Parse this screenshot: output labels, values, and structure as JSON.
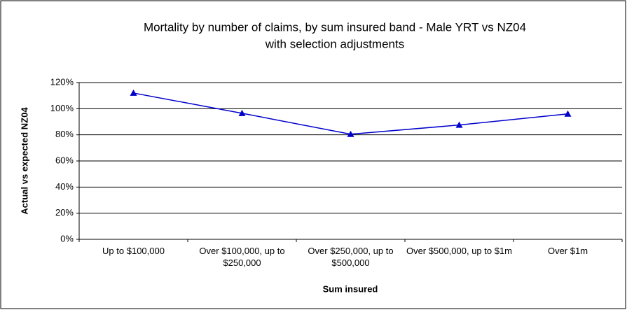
{
  "chart_data": {
    "type": "line",
    "title": "Mortality by number of claims, by sum insured band - Male YRT vs NZ04",
    "subtitle": "with selection adjustments",
    "x_label": "Sum insured",
    "y_label": "Actual vs expected NZ04",
    "categories": [
      "Up to $100,000",
      "Over $100,000, up to $250,000",
      "Over $250,000, up to $500,000",
      "Over $500,000, up to $1m",
      "Over $1m"
    ],
    "values": [
      112,
      96.5,
      80.5,
      87.5,
      96
    ],
    "color": "#0000cc",
    "marker": "triangle",
    "ylim": [
      0,
      120
    ],
    "yticks": [
      {
        "value": 0,
        "label": "0%"
      },
      {
        "value": 20,
        "label": "20%"
      },
      {
        "value": 40,
        "label": "40%"
      },
      {
        "value": 60,
        "label": "60%"
      },
      {
        "value": 80,
        "label": "80%"
      },
      {
        "value": 100,
        "label": "100%"
      },
      {
        "value": 120,
        "label": "120%"
      }
    ],
    "grid": true
  }
}
